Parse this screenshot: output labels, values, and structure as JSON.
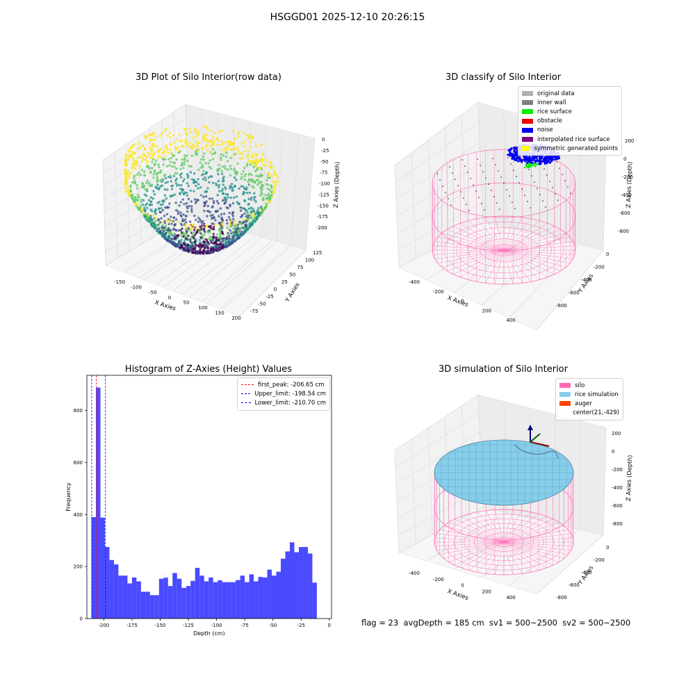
{
  "suptitle": "HSGGD01 2025-12-10 20:26:15",
  "footer": "flag = 23  avgDepth = 185 cm  sv1 = 500~2500  sv2 = 500~2500",
  "panels": {
    "raw": {
      "title": "3D Plot of Silo Interior(row data)",
      "xlabel": "X Axies",
      "ylabel": "Y Axies",
      "zlabel": "Z Axies (Depth)",
      "xticks": [
        "-150",
        "-100",
        "-50",
        "0",
        "50",
        "100",
        "150",
        "200"
      ],
      "yticks": [
        "-75",
        "-50",
        "-25",
        "0",
        "25",
        "50",
        "75",
        "100",
        "125"
      ],
      "zticks": [
        "0",
        "-25",
        "-50",
        "-75",
        "-100",
        "-125",
        "-150",
        "-175",
        "-200"
      ],
      "colormap": [
        "#440154",
        "#3b528b",
        "#21918c",
        "#5ec962",
        "#fde725"
      ]
    },
    "classify": {
      "title": "3D classify of Silo Interior",
      "xlabel": "X Axies",
      "ylabel": "Y Axies",
      "zlabel": "Z Axies (Depth)",
      "xticks": [
        "-400",
        "-200",
        "0",
        "200",
        "400"
      ],
      "yticks": [
        "-800",
        "-600",
        "-400",
        "-200",
        "0"
      ],
      "zticks": [
        "200",
        "0",
        "-200",
        "-400",
        "-600",
        "-800"
      ],
      "legend": [
        {
          "label": "original data",
          "color": "#b0b0b0"
        },
        {
          "label": "inner wall",
          "color": "#808080"
        },
        {
          "label": "rice surface",
          "color": "#00ee00"
        },
        {
          "label": "obstacle",
          "color": "#ee0000"
        },
        {
          "label": "noise",
          "color": "#0000ee"
        },
        {
          "label": "interpolated rice surface",
          "color": "#800080"
        },
        {
          "label": "symmetric generated points",
          "color": "#ffff00"
        }
      ],
      "wire_color": "#ff69b4"
    },
    "histogram": {
      "title": "Histogram of Z-Axies (Height) Values",
      "xlabel": "Depth (cm)",
      "ylabel": "Frequency",
      "xticks": [
        "-200",
        "-175",
        "-150",
        "-125",
        "-100",
        "-75",
        "-50",
        "-25",
        "0"
      ],
      "yticks": [
        "0",
        "200",
        "400",
        "600",
        "800"
      ],
      "legend": [
        {
          "label": "first_peak: -206.65 cm",
          "color": "#ff0000"
        },
        {
          "label": "Upper_limit: -198.54 cm",
          "color": "#0000ff"
        },
        {
          "label": "Lower_limit: -210.70 cm",
          "color": "#0000ff"
        }
      ]
    },
    "simulation": {
      "title": "3D simulation of Silo Interior",
      "xlabel": "X Axies",
      "ylabel": "Y Axies",
      "zlabel": "Z Axies (Depth)",
      "xticks": [
        "-400",
        "-200",
        "0",
        "200",
        "400"
      ],
      "yticks": [
        "-800",
        "-600",
        "-400",
        "-200",
        "0"
      ],
      "zticks": [
        "200",
        "0",
        "-200",
        "-400",
        "-600",
        "-800"
      ],
      "legend": [
        {
          "label": "silo",
          "color": "#ff69b4"
        },
        {
          "label": "rice simulation",
          "color": "#87ceeb"
        },
        {
          "label": "auger",
          "color": "#ff4500"
        },
        {
          "label": "center(21,-429)",
          "color": ""
        }
      ],
      "surface_color": "#87ceeb",
      "wire_color": "#ff69b4"
    }
  },
  "chart_data": {
    "type": "bar",
    "title": "Histogram of Z-Axies (Height) Values",
    "xlabel": "Depth (cm)",
    "ylabel": "Frequency",
    "xlim": [
      -215,
      2
    ],
    "ylim": [
      0,
      935
    ],
    "bin_start": -211,
    "bin_width": 4,
    "values": [
      390,
      888,
      388,
      275,
      225,
      208,
      165,
      165,
      135,
      158,
      143,
      103,
      103,
      90,
      90,
      153,
      157,
      125,
      175,
      153,
      118,
      125,
      145,
      195,
      165,
      143,
      158,
      140,
      147,
      140,
      140,
      140,
      148,
      165,
      140,
      170,
      143,
      160,
      158,
      188,
      165,
      180,
      230,
      258,
      293,
      255,
      275,
      275,
      250,
      138
    ],
    "vlines": [
      {
        "label": "first_peak: -206.65 cm",
        "x": -206.65,
        "color": "#ff0000"
      },
      {
        "label": "Upper_limit: -198.54 cm",
        "x": -198.54,
        "color": "#0000ff"
      },
      {
        "label": "Lower_limit: -210.70 cm",
        "x": -210.7,
        "color": "#0000ff"
      }
    ],
    "bar_color": "#4a4aff"
  }
}
